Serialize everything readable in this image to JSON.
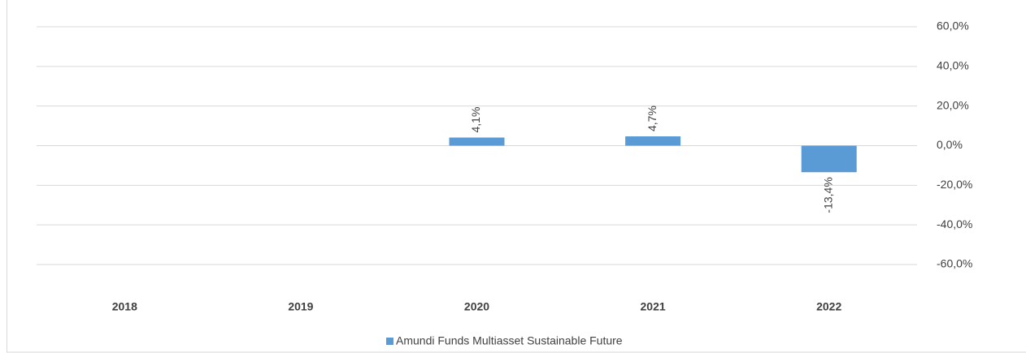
{
  "chart_data": {
    "type": "bar",
    "categories": [
      "2018",
      "2019",
      "2020",
      "2021",
      "2022"
    ],
    "series": [
      {
        "name": "Amundi Funds Multiasset Sustainable Future",
        "color": "#5b9bd5",
        "values": [
          null,
          null,
          4.1,
          4.7,
          -13.4
        ],
        "value_labels": [
          null,
          null,
          "4,1%",
          "4,7%",
          "-13,4%"
        ]
      }
    ],
    "ylim": [
      -60,
      60
    ],
    "yticks": [
      {
        "value": -60,
        "label": "-60,0%"
      },
      {
        "value": -40,
        "label": "-40,0%"
      },
      {
        "value": -20,
        "label": "-20,0%"
      },
      {
        "value": 0,
        "label": "0,0%"
      },
      {
        "value": 20,
        "label": "20,0%"
      },
      {
        "value": 40,
        "label": "40,0%"
      },
      {
        "value": 60,
        "label": "60,0%"
      }
    ],
    "grid": true,
    "legend": "bottom"
  }
}
